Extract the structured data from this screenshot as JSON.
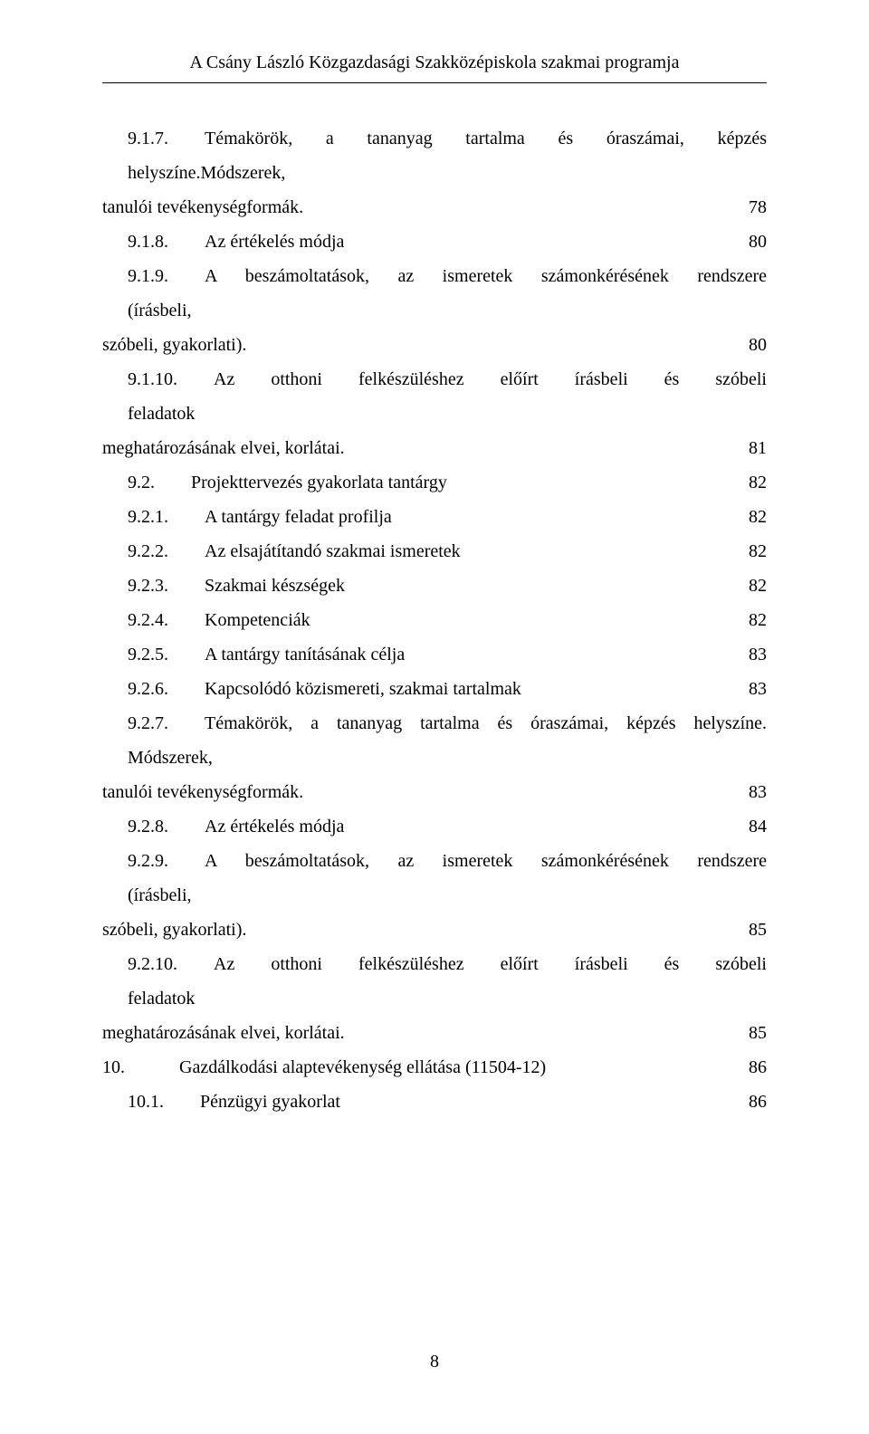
{
  "header": "A Csány László Közgazdasági Szakközépiskola szakmai programja",
  "page_number": "8",
  "entries": [
    {
      "num": "9.1.7.",
      "line1_cls": "ws-6",
      "line1": "Témakörök, a tananyag tartalma és óraszámai, képzés helyszíne.Módszerek,",
      "line2": "tanulói tevékenységformák.",
      "page": "78",
      "indent": 1,
      "multiline": true
    },
    {
      "num": "9.1.8.",
      "title": "Az értékelés módja",
      "page": "80",
      "indent": 1
    },
    {
      "num": "9.1.9.",
      "line1_cls": "ws-13",
      "line1": "A beszámoltatások, az ismeretek számonkérésének rendszere (írásbeli,",
      "line2": "szóbeli, gyakorlati).",
      "page": "80",
      "indent": 1,
      "multiline": true
    },
    {
      "num": "9.1.10.",
      "line1_cls": "ws-22",
      "line1": "Az otthoni felkészüléshez előírt írásbeli és szóbeli feladatok",
      "line2": "meghatározásának elvei, korlátai.",
      "page": "81",
      "indent": 1,
      "multiline": true
    },
    {
      "num": "9.2.",
      "title": "Projekttervezés gyakorlata tantárgy",
      "page": "82",
      "indent": 1
    },
    {
      "num": "9.2.1.",
      "title": "A tantárgy feladat profilja",
      "page": "82",
      "indent": 1
    },
    {
      "num": "9.2.2.",
      "title": "Az elsajátítandó szakmai ismeretek",
      "page": "82",
      "indent": 1
    },
    {
      "num": "9.2.3.",
      "title": "Szakmai készségek",
      "page": "82",
      "indent": 1
    },
    {
      "num": "9.2.4.",
      "title": "Kompetenciák",
      "page": "82",
      "indent": 1
    },
    {
      "num": "9.2.5.",
      "title": "A tantárgy tanításának célja",
      "page": "83",
      "indent": 1
    },
    {
      "num": "9.2.6.",
      "title": "Kapcsolódó közismereti, szakmai tartalmak",
      "page": "83",
      "indent": 1
    },
    {
      "num": "9.2.7.",
      "line1_cls": "ws-3",
      "line1": "Témakörök, a tananyag tartalma és óraszámai, képzés helyszíne. Módszerek,",
      "line2": "tanulói tevékenységformák.",
      "page": "83",
      "indent": 1,
      "multiline": true
    },
    {
      "num": "9.2.8.",
      "title": "Az értékelés módja",
      "page": "84",
      "indent": 1
    },
    {
      "num": "9.2.9.",
      "line1_cls": "ws-13",
      "line1": "A beszámoltatások, az ismeretek számonkérésének rendszere (írásbeli,",
      "line2": "szóbeli, gyakorlati).",
      "page": "85",
      "indent": 1,
      "multiline": true
    },
    {
      "num": "9.2.10.",
      "line1_cls": "ws-22",
      "line1": "Az otthoni felkészüléshez előírt írásbeli és szóbeli feladatok",
      "line2": "meghatározásának elvei, korlátai.",
      "page": "85",
      "indent": 1,
      "multiline": true
    },
    {
      "num": "10.",
      "title": "Gazdálkodási alaptevékenység ellátása (11504-12)",
      "page": "86",
      "indent": 0,
      "gap": true
    },
    {
      "num": "10.1.",
      "title": "Pénzügyi gyakorlat",
      "page": "86",
      "indent": 1
    }
  ]
}
